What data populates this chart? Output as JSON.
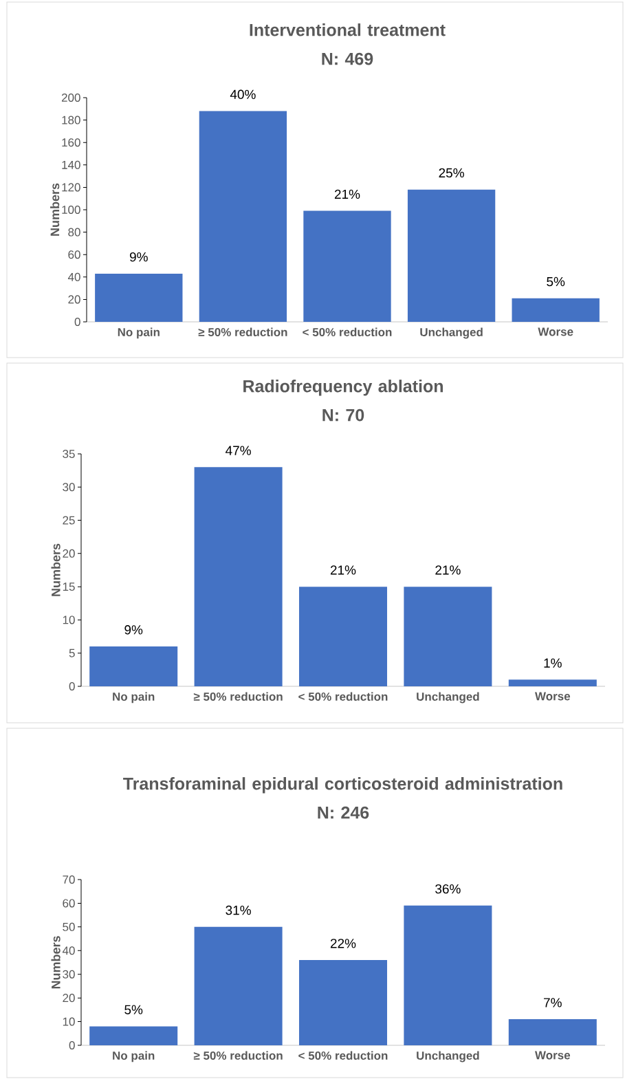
{
  "chart_data": [
    {
      "type": "bar",
      "title": "Interventional treatment",
      "subtitle": "N: 469",
      "ylabel": "Numbers",
      "categories": [
        "No pain",
        "≥ 50% reduction",
        "< 50% reduction",
        "Unchanged",
        "Worse"
      ],
      "values": [
        43,
        188,
        99,
        118,
        21
      ],
      "color": "#4472c4",
      "annotations": [
        {
          "text": "9%",
          "x": "No pain",
          "y": 43
        },
        {
          "text": "40%",
          "x": "≥ 50% reduction",
          "y": 188
        },
        {
          "text": "21%",
          "x": "< 50% reduction",
          "y": 99
        },
        {
          "text": "25%",
          "x": "Unchanged",
          "y": 118
        },
        {
          "text": "5%",
          "x": "Worse",
          "y": 21
        }
      ],
      "ylim": [
        0,
        200
      ],
      "yticks": [
        0,
        20,
        40,
        60,
        80,
        100,
        120,
        140,
        160,
        180,
        200
      ]
    },
    {
      "type": "bar",
      "title": "Radiofrequency ablation",
      "subtitle": "N: 70",
      "ylabel": "Numbers",
      "categories": [
        "No pain",
        "≥ 50% reduction",
        "< 50% reduction",
        "Unchanged",
        "Worse"
      ],
      "values": [
        6,
        33,
        15,
        15,
        1
      ],
      "color": "#4472c4",
      "annotations": [
        {
          "text": "9%",
          "x": "No pain",
          "y": 6
        },
        {
          "text": "47%",
          "x": "≥ 50% reduction",
          "y": 33
        },
        {
          "text": "21%",
          "x": "< 50% reduction",
          "y": 15
        },
        {
          "text": "21%",
          "x": "Unchanged",
          "y": 15
        },
        {
          "text": "1%",
          "x": "Worse",
          "y": 1
        }
      ],
      "ylim": [
        0,
        35
      ],
      "yticks": [
        0,
        5,
        10,
        15,
        20,
        25,
        30,
        35
      ]
    },
    {
      "type": "bar",
      "title": "Transforaminal epidural corticosteroid administration",
      "subtitle": "N: 246",
      "ylabel": "Numbers",
      "categories": [
        "No pain",
        "≥ 50% reduction",
        "< 50% reduction",
        "Unchanged",
        "Worse"
      ],
      "values": [
        8,
        50,
        36,
        59,
        11
      ],
      "color": "#4472c4",
      "annotations": [
        {
          "text": "5%",
          "x": "No pain",
          "y": 8
        },
        {
          "text": "31%",
          "x": "≥ 50% reduction",
          "y": 50
        },
        {
          "text": "22%",
          "x": "< 50% reduction",
          "y": 36
        },
        {
          "text": "36%",
          "x": "Unchanged",
          "y": 59
        },
        {
          "text": "7%",
          "x": "Worse",
          "y": 11
        }
      ],
      "ylim": [
        0,
        70
      ],
      "yticks": [
        0,
        10,
        20,
        30,
        40,
        50,
        60,
        70
      ]
    }
  ]
}
